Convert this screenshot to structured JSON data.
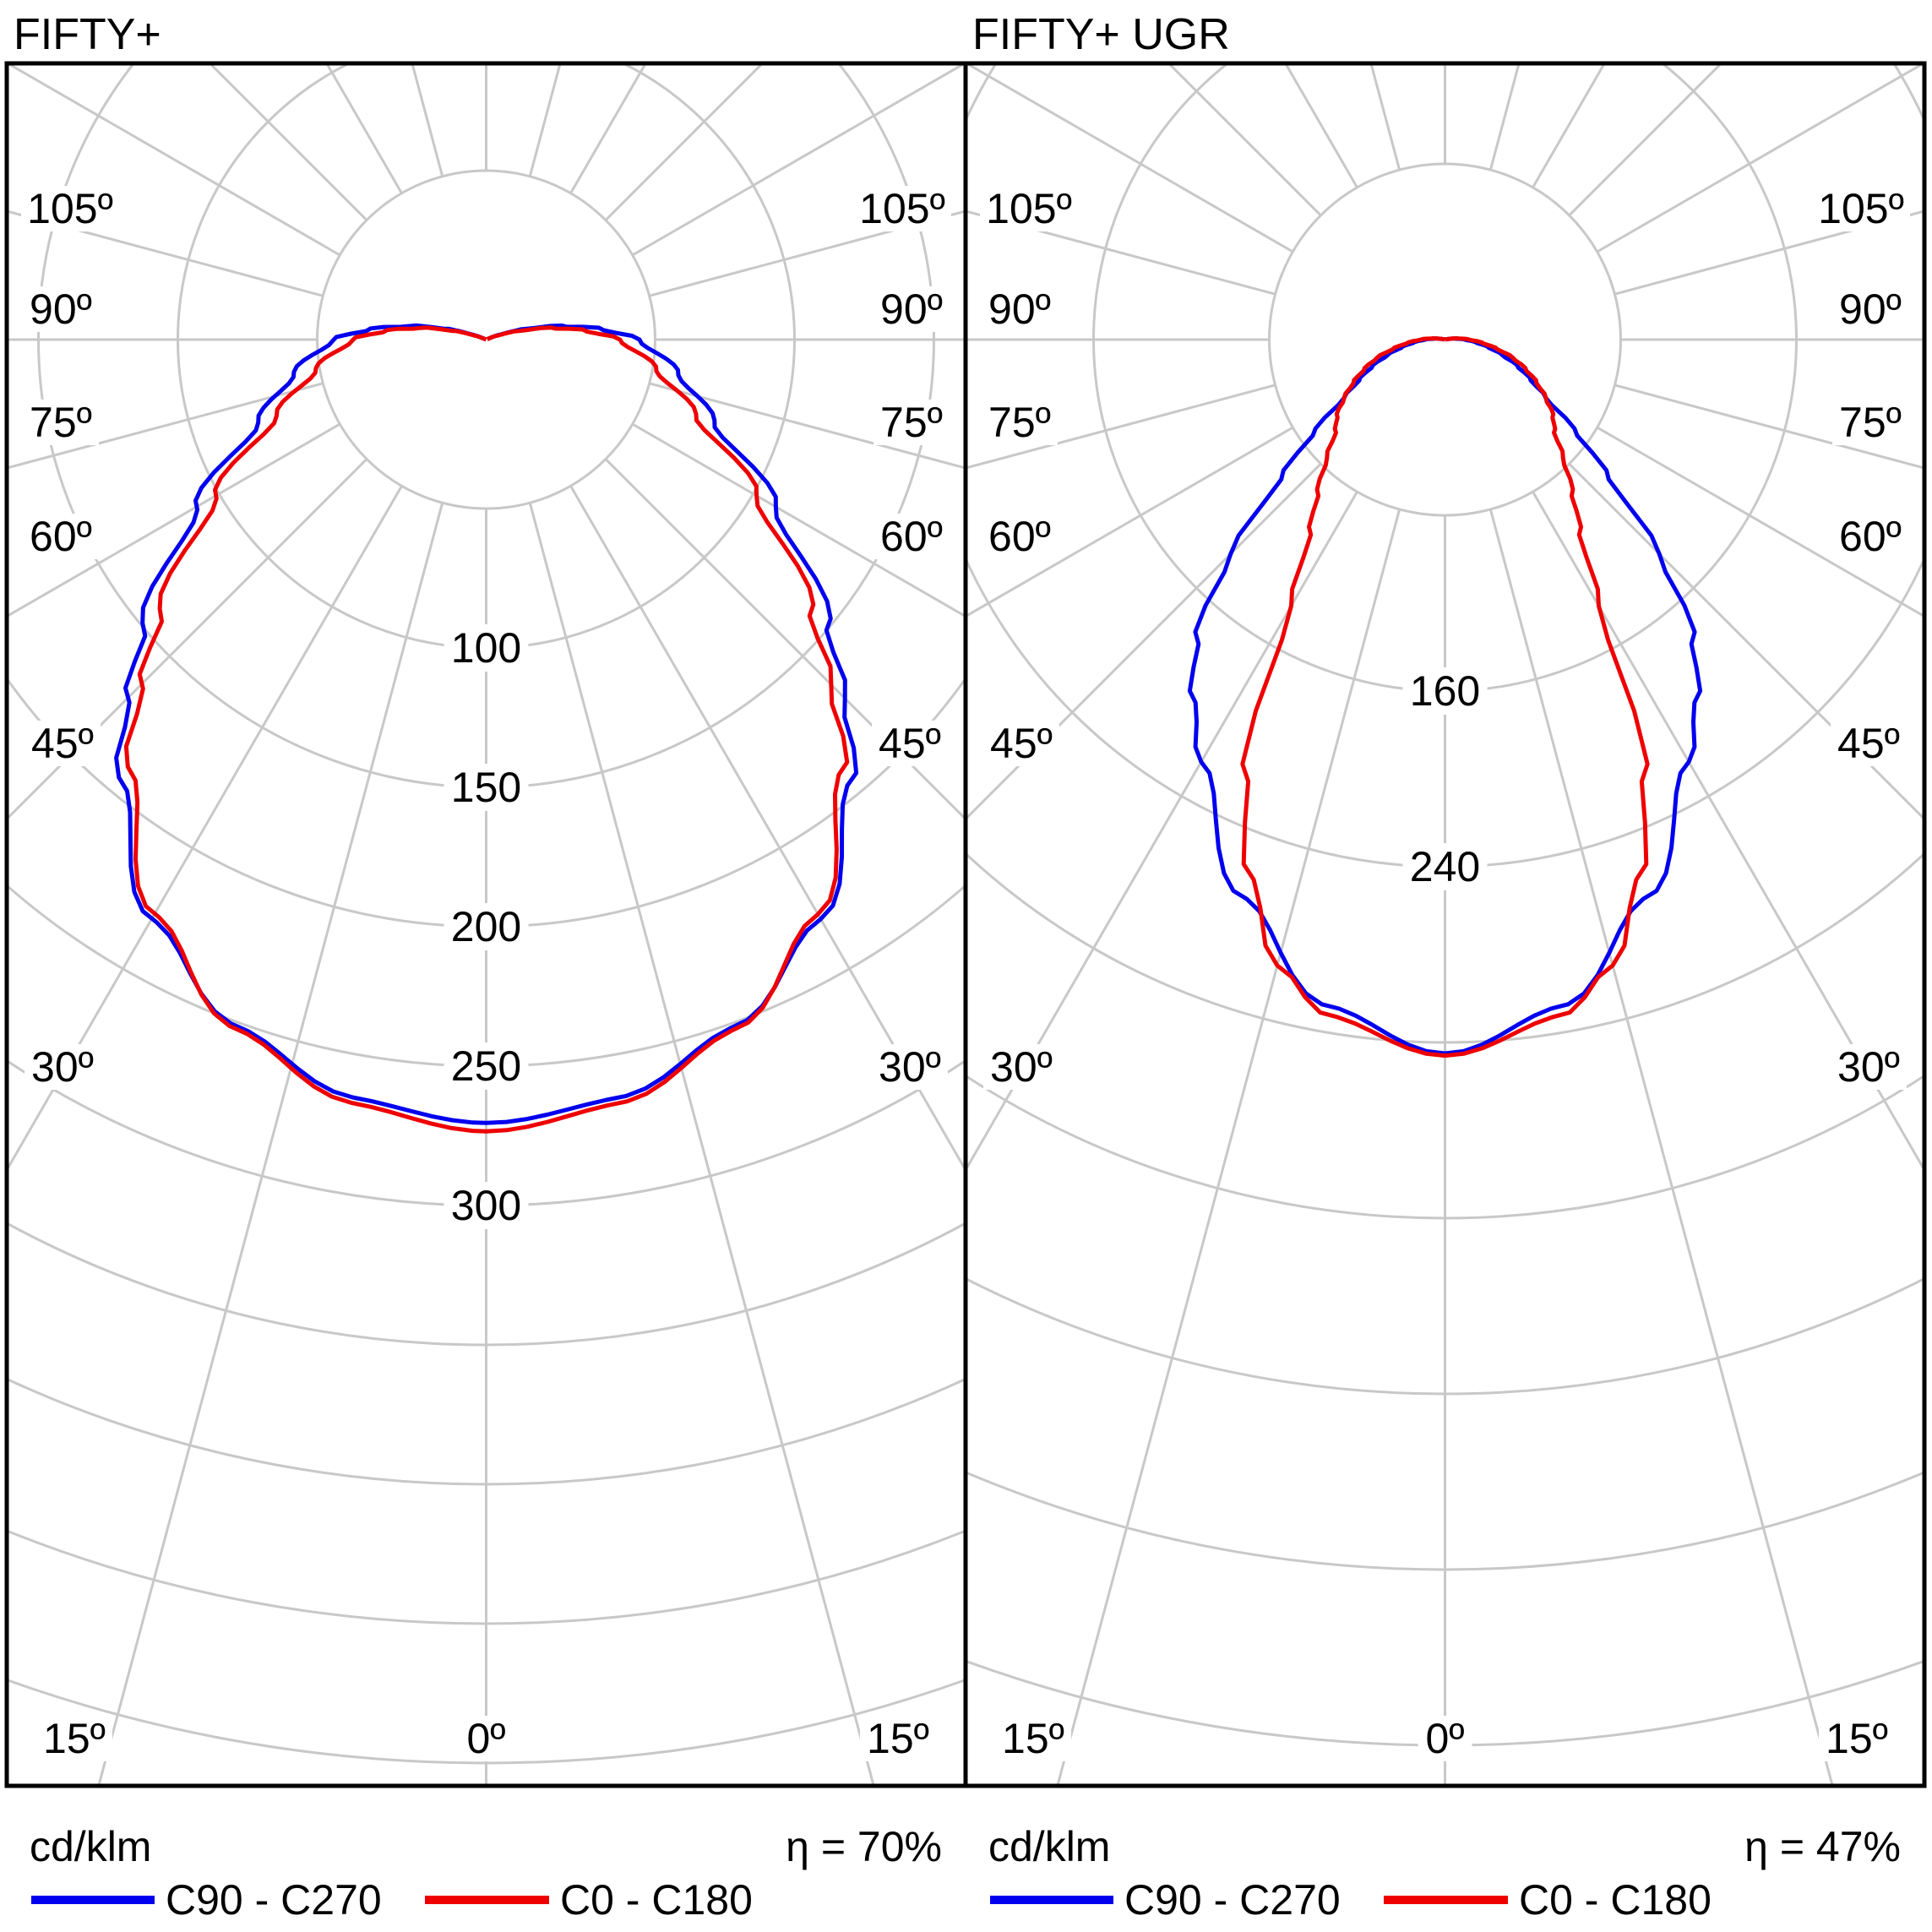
{
  "chart_data": [
    {
      "type": "polar_photometric_line",
      "title": "FIFTY+",
      "unit": "cd/klm",
      "efficiency": "η = 70%",
      "ring_step": 50,
      "ring_labels": [
        100,
        150,
        200,
        250,
        300
      ],
      "angle_labels": [
        "105º",
        "90º",
        "75º",
        "60º",
        "45º",
        "30º",
        "15º",
        "0º"
      ],
      "grid_color": "#c8c8c8",
      "series": [
        {
          "name": "C90 - C270",
          "color": "#0000ee",
          "gamma": [
            0,
            10,
            20,
            30,
            40,
            45,
            50,
            60,
            70,
            80,
            90,
            95,
            100,
            105,
            110,
            115
          ],
          "intensity": [
            281,
            276,
            262,
            240,
            205,
            182,
            160,
            120,
            87,
            70,
            55,
            42,
            28,
            15,
            5,
            0
          ]
        },
        {
          "name": "C0 - C180",
          "color": "#ee0000",
          "gamma": [
            0,
            10,
            20,
            30,
            40,
            45,
            50,
            60,
            70,
            80,
            90,
            95,
            100,
            105,
            110,
            115
          ],
          "intensity": [
            284,
            278,
            263,
            238,
            200,
            175,
            152,
            112,
            80,
            62,
            48,
            36,
            24,
            12,
            4,
            0
          ]
        }
      ]
    },
    {
      "type": "polar_photometric_line",
      "title": "FIFTY+ UGR",
      "unit": "cd/klm",
      "efficiency": "η = 47%",
      "ring_step": 80,
      "ring_labels": [
        160,
        240
      ],
      "angle_labels": [
        "105º",
        "90º",
        "75º",
        "60º",
        "45º",
        "30º",
        "15º",
        "0º"
      ],
      "grid_color": "#c8c8c8",
      "series": [
        {
          "name": "C90 - C270",
          "color": "#0000ee",
          "gamma": [
            0,
            10,
            20,
            30,
            35,
            40,
            45,
            50,
            55,
            60,
            65,
            70,
            75,
            80,
            85,
            90,
            95,
            100,
            105
          ],
          "intensity": [
            325,
            308,
            270,
            222,
            200,
            176,
            138,
            97,
            72,
            53,
            43,
            35,
            27,
            20,
            14,
            9,
            5,
            2,
            0
          ]
        },
        {
          "name": "C0 - C180",
          "color": "#ee0000",
          "gamma": [
            0,
            10,
            15,
            20,
            25,
            30,
            35,
            40,
            45,
            50,
            55,
            60,
            65,
            70,
            75,
            80,
            85,
            90,
            95,
            100,
            105
          ],
          "intensity": [
            326,
            312,
            295,
            260,
            216,
            140,
            107,
            90,
            76,
            65,
            60,
            53,
            46,
            39,
            32,
            24,
            17,
            11,
            6,
            2,
            0
          ]
        }
      ]
    }
  ]
}
